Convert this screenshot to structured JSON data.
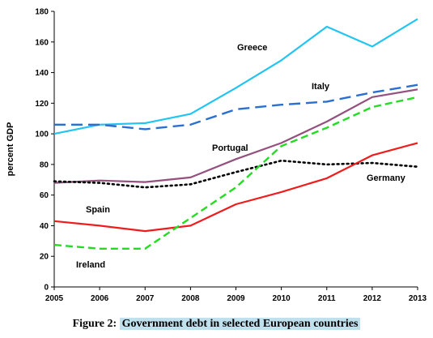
{
  "chart_data": {
    "type": "line",
    "title": "",
    "xlabel": "",
    "ylabel": "percent GDP",
    "x": [
      "2005",
      "2006",
      "2007",
      "2008",
      "2009",
      "2010",
      "2011",
      "2012",
      "2013"
    ],
    "ylim": [
      0,
      180
    ],
    "yticks": [
      "0",
      "20",
      "40",
      "60",
      "80",
      "100",
      "120",
      "140",
      "160",
      "180"
    ],
    "grid": false,
    "series": [
      {
        "name": "Greece",
        "color": "#22c4f2",
        "dash": "solid",
        "values": [
          100,
          106,
          107,
          113,
          130,
          148,
          170,
          157,
          175
        ]
      },
      {
        "name": "Italy",
        "color": "#2b6fd0",
        "dash": "long-dash",
        "values": [
          106,
          106,
          103,
          106,
          116,
          119,
          121,
          127,
          132
        ]
      },
      {
        "name": "Portugal",
        "color": "#94507e",
        "dash": "solid",
        "values": [
          68,
          69.5,
          68.5,
          71.5,
          83.5,
          94,
          108,
          124,
          129
        ]
      },
      {
        "name": "Germany",
        "color": "#000000",
        "dash": "dotted",
        "values": [
          69,
          68,
          65,
          67,
          75,
          82.5,
          80,
          81,
          78.5
        ]
      },
      {
        "name": "Spain",
        "color": "#ee1c1c",
        "dash": "solid",
        "values": [
          43,
          40,
          36.5,
          40,
          54,
          62,
          71,
          86,
          94
        ]
      },
      {
        "name": "Ireland",
        "color": "#22dd22",
        "dash": "dashed",
        "values": [
          27.5,
          25,
          25,
          45,
          65,
          92,
          104,
          117.5,
          124
        ]
      }
    ]
  },
  "caption": {
    "prefix": "Figure 2:",
    "text": "Government debt in selected European countries"
  }
}
